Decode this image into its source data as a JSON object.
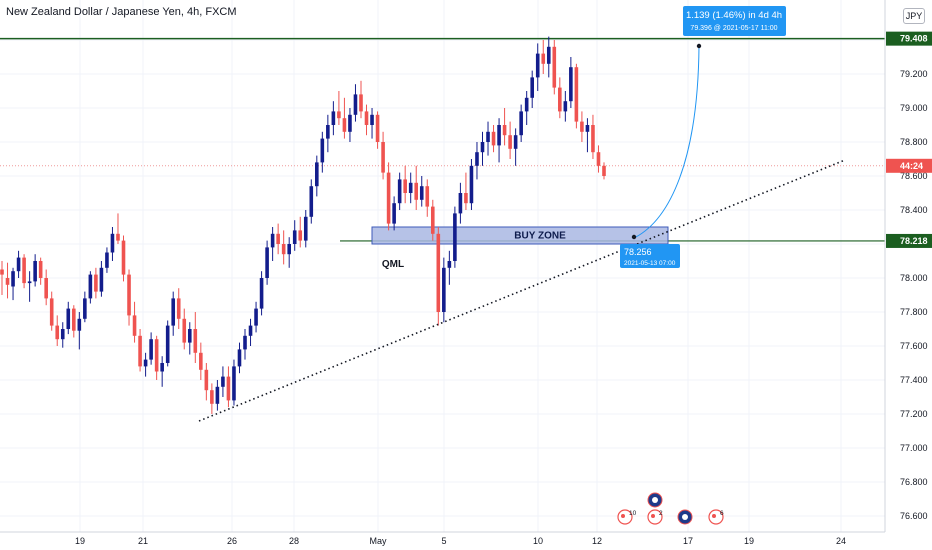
{
  "header": {
    "title": "New Zealand Dollar / Japanese Yen, 4h, FXCM",
    "currency": "JPY"
  },
  "chart_data": {
    "type": "candlestick",
    "symbol": "NZDJPY",
    "interval": "4h",
    "ylim": [
      76.55,
      79.55
    ],
    "y_ticks": [
      "79.400",
      "79.200",
      "79.000",
      "78.800",
      "78.600",
      "78.400",
      "78.200",
      "78.000",
      "77.800",
      "77.600",
      "77.400",
      "77.200",
      "77.000",
      "76.800",
      "76.600"
    ],
    "x_ticks": [
      "19",
      "21",
      "26",
      "28",
      "May",
      "5",
      "10",
      "12",
      "17",
      "19",
      "24"
    ],
    "price_tags": {
      "top": "79.408",
      "current": "44:24",
      "buy": "78.218"
    },
    "annotations": {
      "target_label": "1.139 (1.46%) in 4d 4h",
      "target_sub": "79.396 @ 2021-05-17  11:00",
      "entry_label": "78.256",
      "entry_sub": "2021-05-13 07:00",
      "buy_zone": "BUY ZONE",
      "qml": "QML"
    },
    "event_badges": [
      "10",
      "2",
      "6"
    ],
    "candles": [
      [
        78.05,
        78.1,
        77.9,
        78.02
      ],
      [
        78.0,
        78.09,
        77.88,
        77.96
      ],
      [
        77.95,
        78.06,
        77.87,
        78.04
      ],
      [
        78.04,
        78.16,
        78.0,
        78.12
      ],
      [
        78.12,
        78.14,
        77.94,
        77.97
      ],
      [
        77.97,
        78.04,
        77.86,
        77.98
      ],
      [
        77.98,
        78.14,
        77.95,
        78.1
      ],
      [
        78.1,
        78.12,
        77.96,
        78.0
      ],
      [
        78.0,
        78.05,
        77.84,
        77.88
      ],
      [
        77.88,
        77.92,
        77.69,
        77.72
      ],
      [
        77.72,
        77.78,
        77.6,
        77.64
      ],
      [
        77.64,
        77.74,
        77.59,
        77.7
      ],
      [
        77.7,
        77.86,
        77.67,
        77.82
      ],
      [
        77.82,
        77.84,
        77.65,
        77.69
      ],
      [
        77.69,
        77.8,
        77.58,
        77.76
      ],
      [
        77.76,
        77.92,
        77.74,
        77.88
      ],
      [
        77.88,
        78.04,
        77.85,
        78.02
      ],
      [
        78.02,
        78.06,
        77.88,
        77.92
      ],
      [
        77.92,
        78.1,
        77.89,
        78.06
      ],
      [
        78.06,
        78.18,
        78.03,
        78.15
      ],
      [
        78.15,
        78.3,
        78.1,
        78.26
      ],
      [
        78.26,
        78.38,
        78.2,
        78.22
      ],
      [
        78.22,
        78.25,
        77.98,
        78.02
      ],
      [
        78.02,
        78.05,
        77.72,
        77.78
      ],
      [
        77.78,
        77.86,
        77.62,
        77.66
      ],
      [
        77.66,
        77.7,
        77.45,
        77.48
      ],
      [
        77.48,
        77.56,
        77.42,
        77.52
      ],
      [
        77.52,
        77.68,
        77.49,
        77.64
      ],
      [
        77.64,
        77.66,
        77.4,
        77.45
      ],
      [
        77.45,
        77.54,
        77.36,
        77.5
      ],
      [
        77.5,
        77.75,
        77.48,
        77.72
      ],
      [
        77.72,
        77.92,
        77.66,
        77.88
      ],
      [
        77.88,
        77.94,
        77.7,
        77.76
      ],
      [
        77.76,
        77.82,
        77.58,
        77.62
      ],
      [
        77.62,
        77.74,
        77.55,
        77.7
      ],
      [
        77.7,
        77.8,
        77.5,
        77.56
      ],
      [
        77.56,
        77.62,
        77.4,
        77.46
      ],
      [
        77.46,
        77.5,
        77.28,
        77.34
      ],
      [
        77.34,
        77.38,
        77.2,
        77.26
      ],
      [
        77.26,
        77.4,
        77.22,
        77.36
      ],
      [
        77.36,
        77.48,
        77.3,
        77.42
      ],
      [
        77.42,
        77.48,
        77.24,
        77.28
      ],
      [
        77.28,
        77.52,
        77.25,
        77.48
      ],
      [
        77.48,
        77.62,
        77.44,
        77.58
      ],
      [
        77.58,
        77.7,
        77.52,
        77.66
      ],
      [
        77.66,
        77.76,
        77.6,
        77.72
      ],
      [
        77.72,
        77.86,
        77.68,
        77.82
      ],
      [
        77.82,
        78.04,
        77.78,
        78.0
      ],
      [
        78.0,
        78.22,
        77.96,
        78.18
      ],
      [
        78.18,
        78.3,
        78.1,
        78.26
      ],
      [
        78.26,
        78.32,
        78.14,
        78.2
      ],
      [
        78.2,
        78.28,
        78.08,
        78.14
      ],
      [
        78.14,
        78.24,
        78.06,
        78.2
      ],
      [
        78.2,
        78.34,
        78.16,
        78.28
      ],
      [
        78.28,
        78.36,
        78.18,
        78.22
      ],
      [
        78.22,
        78.4,
        78.18,
        78.36
      ],
      [
        78.36,
        78.58,
        78.32,
        78.54
      ],
      [
        78.54,
        78.72,
        78.48,
        78.68
      ],
      [
        78.68,
        78.86,
        78.62,
        78.82
      ],
      [
        78.82,
        78.96,
        78.74,
        78.9
      ],
      [
        78.9,
        79.04,
        78.84,
        78.98
      ],
      [
        78.98,
        79.1,
        78.9,
        78.94
      ],
      [
        78.94,
        79.06,
        78.82,
        78.86
      ],
      [
        78.86,
        79.0,
        78.8,
        78.96
      ],
      [
        78.96,
        79.14,
        78.92,
        79.08
      ],
      [
        79.08,
        79.16,
        78.94,
        78.98
      ],
      [
        78.98,
        79.02,
        78.84,
        78.9
      ],
      [
        78.9,
        79.0,
        78.82,
        78.96
      ],
      [
        78.96,
        78.98,
        78.76,
        78.8
      ],
      [
        78.8,
        78.86,
        78.58,
        78.62
      ],
      [
        78.62,
        78.68,
        78.28,
        78.32
      ],
      [
        78.32,
        78.48,
        78.28,
        78.44
      ],
      [
        78.44,
        78.62,
        78.4,
        78.58
      ],
      [
        78.58,
        78.66,
        78.44,
        78.5
      ],
      [
        78.5,
        78.62,
        78.44,
        78.56
      ],
      [
        78.56,
        78.66,
        78.4,
        78.46
      ],
      [
        78.46,
        78.6,
        78.42,
        78.54
      ],
      [
        78.54,
        78.58,
        78.36,
        78.42
      ],
      [
        78.42,
        78.46,
        78.22,
        78.26
      ],
      [
        78.26,
        78.3,
        77.72,
        77.8
      ],
      [
        77.8,
        78.12,
        77.74,
        78.06
      ],
      [
        78.06,
        78.16,
        77.96,
        78.1
      ],
      [
        78.1,
        78.42,
        78.06,
        78.38
      ],
      [
        78.38,
        78.56,
        78.32,
        78.5
      ],
      [
        78.5,
        78.62,
        78.4,
        78.44
      ],
      [
        78.44,
        78.7,
        78.4,
        78.66
      ],
      [
        78.66,
        78.8,
        78.58,
        78.74
      ],
      [
        78.74,
        78.86,
        78.66,
        78.8
      ],
      [
        78.8,
        78.92,
        78.72,
        78.86
      ],
      [
        78.86,
        78.9,
        78.74,
        78.78
      ],
      [
        78.78,
        78.94,
        78.68,
        78.9
      ],
      [
        78.9,
        79.0,
        78.78,
        78.84
      ],
      [
        78.84,
        78.92,
        78.7,
        78.76
      ],
      [
        78.76,
        78.88,
        78.66,
        78.84
      ],
      [
        78.84,
        79.02,
        78.8,
        78.98
      ],
      [
        78.98,
        79.1,
        78.9,
        79.06
      ],
      [
        79.06,
        79.22,
        79.0,
        79.18
      ],
      [
        79.18,
        79.38,
        79.1,
        79.32
      ],
      [
        79.32,
        79.4,
        79.2,
        79.26
      ],
      [
        79.26,
        79.42,
        79.18,
        79.36
      ],
      [
        79.36,
        79.4,
        79.08,
        79.12
      ],
      [
        79.12,
        79.18,
        78.94,
        78.98
      ],
      [
        78.98,
        79.1,
        78.92,
        79.04
      ],
      [
        79.04,
        79.3,
        79.0,
        79.24
      ],
      [
        79.24,
        79.26,
        78.88,
        78.92
      ],
      [
        78.92,
        78.98,
        78.8,
        78.86
      ],
      [
        78.86,
        78.94,
        78.74,
        78.9
      ],
      [
        78.9,
        78.96,
        78.7,
        78.74
      ],
      [
        78.74,
        78.78,
        78.62,
        78.66
      ],
      [
        78.66,
        78.68,
        78.58,
        78.6
      ]
    ]
  },
  "colors": {
    "bull": "#131d8c",
    "bear": "#ef5350",
    "green_line": "#1b5e20",
    "trendline": "#131722",
    "buy_zone_fill": "#a9b7e3",
    "buy_zone_border": "#3d5ab8",
    "target_tag": "#2196f3"
  }
}
